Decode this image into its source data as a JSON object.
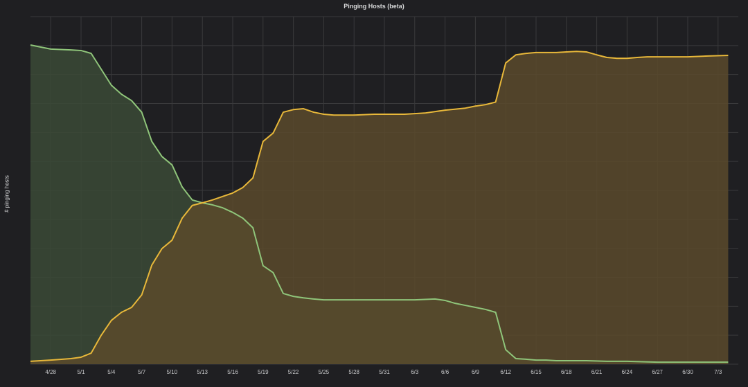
{
  "panel": {
    "title": "Pinging Hosts (beta)",
    "ylabel": "# pinging hosts"
  },
  "colors": {
    "background": "#1f1f22",
    "grid": "#3a3a3c",
    "series_green_line": "#8fc57a",
    "series_green_fill": "#3b4a36",
    "series_yellow_line": "#e8b83a",
    "series_yellow_fill": "#5a4a2c"
  },
  "chart_data": {
    "type": "area",
    "title": "Pinging Hosts (beta)",
    "xlabel": "",
    "ylabel": "# pinging hosts",
    "y_ticks_visible": false,
    "y_units_note": "values in gridline units (no y tick labels shown); 12 gridline intervals",
    "ylim": [
      0,
      12
    ],
    "x_day0": "4/26",
    "xlim_days": [
      0,
      69
    ],
    "grid": true,
    "legend": "none",
    "x_tick_labels": [
      "4/28",
      "5/1",
      "5/4",
      "5/7",
      "5/10",
      "5/13",
      "5/16",
      "5/19",
      "5/22",
      "5/25",
      "5/28",
      "5/31",
      "6/3",
      "6/6",
      "6/9",
      "6/12",
      "6/15",
      "6/18",
      "6/21",
      "6/24",
      "6/27",
      "6/30",
      "7/3"
    ],
    "x_tick_days": [
      2,
      5,
      8,
      11,
      14,
      17,
      20,
      23,
      26,
      29,
      32,
      35,
      38,
      41,
      44,
      47,
      50,
      53,
      56,
      59,
      62,
      65,
      68
    ],
    "series": [
      {
        "name": "green",
        "color": "#8fc57a",
        "points": [
          [
            0,
            11.02
          ],
          [
            2,
            10.88
          ],
          [
            4,
            10.85
          ],
          [
            5,
            10.83
          ],
          [
            6,
            10.73
          ],
          [
            8,
            9.63
          ],
          [
            9,
            9.32
          ],
          [
            10,
            9.1
          ],
          [
            11,
            8.7
          ],
          [
            12,
            7.69
          ],
          [
            13,
            7.17
          ],
          [
            14,
            6.88
          ],
          [
            15,
            6.12
          ],
          [
            16,
            5.67
          ],
          [
            17,
            5.57
          ],
          [
            18,
            5.5
          ],
          [
            19,
            5.4
          ],
          [
            20,
            5.24
          ],
          [
            21,
            5.04
          ],
          [
            22,
            4.71
          ],
          [
            23,
            3.4
          ],
          [
            24,
            3.16
          ],
          [
            25,
            2.44
          ],
          [
            26,
            2.34
          ],
          [
            27,
            2.29
          ],
          [
            28,
            2.25
          ],
          [
            29,
            2.22
          ],
          [
            30,
            2.22
          ],
          [
            32,
            2.22
          ],
          [
            35,
            2.22
          ],
          [
            38,
            2.22
          ],
          [
            40,
            2.25
          ],
          [
            41,
            2.2
          ],
          [
            42,
            2.1
          ],
          [
            43,
            2.03
          ],
          [
            44,
            1.96
          ],
          [
            45,
            1.89
          ],
          [
            46,
            1.79
          ],
          [
            47,
            0.5
          ],
          [
            48,
            0.19
          ],
          [
            49,
            0.17
          ],
          [
            50,
            0.14
          ],
          [
            51,
            0.14
          ],
          [
            52,
            0.12
          ],
          [
            53,
            0.12
          ],
          [
            55,
            0.12
          ],
          [
            57,
            0.1
          ],
          [
            59,
            0.1
          ],
          [
            62,
            0.07
          ],
          [
            65,
            0.07
          ],
          [
            68,
            0.07
          ],
          [
            69,
            0.07
          ]
        ]
      },
      {
        "name": "yellow",
        "color": "#e8b83a",
        "points": [
          [
            0,
            0.1
          ],
          [
            2,
            0.14
          ],
          [
            4,
            0.19
          ],
          [
            5,
            0.24
          ],
          [
            6,
            0.38
          ],
          [
            7,
            1.0
          ],
          [
            8,
            1.51
          ],
          [
            9,
            1.79
          ],
          [
            10,
            1.96
          ],
          [
            11,
            2.39
          ],
          [
            12,
            3.42
          ],
          [
            13,
            3.99
          ],
          [
            14,
            4.28
          ],
          [
            15,
            5.04
          ],
          [
            16,
            5.48
          ],
          [
            17,
            5.57
          ],
          [
            18,
            5.67
          ],
          [
            19,
            5.79
          ],
          [
            20,
            5.91
          ],
          [
            21,
            6.1
          ],
          [
            22,
            6.43
          ],
          [
            23,
            7.69
          ],
          [
            24,
            7.98
          ],
          [
            25,
            8.7
          ],
          [
            26,
            8.79
          ],
          [
            27,
            8.82
          ],
          [
            28,
            8.7
          ],
          [
            29,
            8.63
          ],
          [
            30,
            8.6
          ],
          [
            32,
            8.6
          ],
          [
            34,
            8.63
          ],
          [
            37,
            8.63
          ],
          [
            39,
            8.67
          ],
          [
            41,
            8.77
          ],
          [
            43,
            8.84
          ],
          [
            44,
            8.91
          ],
          [
            45,
            8.96
          ],
          [
            46,
            9.05
          ],
          [
            47,
            10.4
          ],
          [
            48,
            10.68
          ],
          [
            49,
            10.73
          ],
          [
            50,
            10.76
          ],
          [
            51,
            10.76
          ],
          [
            52,
            10.76
          ],
          [
            53,
            10.78
          ],
          [
            54,
            10.8
          ],
          [
            55,
            10.78
          ],
          [
            56,
            10.68
          ],
          [
            57,
            10.59
          ],
          [
            58,
            10.56
          ],
          [
            59,
            10.56
          ],
          [
            60,
            10.59
          ],
          [
            61,
            10.61
          ],
          [
            63,
            10.61
          ],
          [
            65,
            10.61
          ],
          [
            67,
            10.64
          ],
          [
            69,
            10.66
          ]
        ]
      }
    ]
  }
}
